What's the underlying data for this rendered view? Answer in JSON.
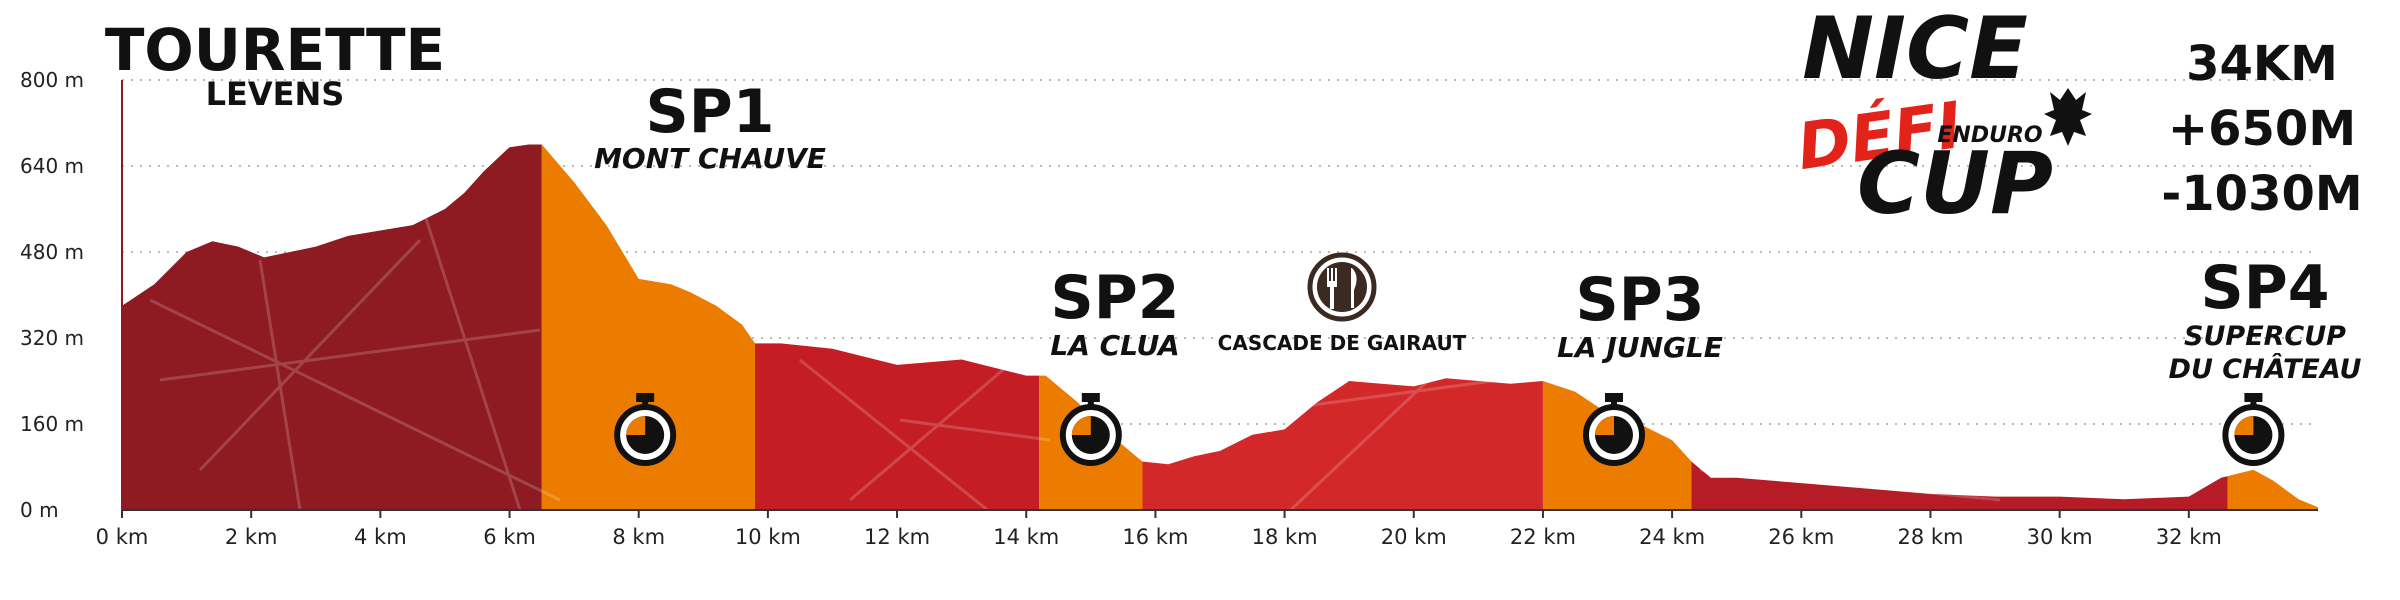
{
  "chart_data": {
    "type": "area",
    "x_unit": "km",
    "y_unit": "m",
    "xlim": [
      0,
      34
    ],
    "ylim": [
      0,
      800
    ],
    "yticks": [
      {
        "value": 0,
        "label": "0 m"
      },
      {
        "value": 160,
        "label": "160 m"
      },
      {
        "value": 320,
        "label": "320 m"
      },
      {
        "value": 480,
        "label": "480 m"
      },
      {
        "value": 640,
        "label": "640 m"
      },
      {
        "value": 800,
        "label": "800 m"
      }
    ],
    "xticks": [
      {
        "value": 0,
        "label": "0 km"
      },
      {
        "value": 2,
        "label": "2 km"
      },
      {
        "value": 4,
        "label": "4 km"
      },
      {
        "value": 6,
        "label": "6 km"
      },
      {
        "value": 8,
        "label": "8 km"
      },
      {
        "value": 10,
        "label": "10 km"
      },
      {
        "value": 12,
        "label": "12 km"
      },
      {
        "value": 14,
        "label": "14 km"
      },
      {
        "value": 16,
        "label": "16 km"
      },
      {
        "value": 18,
        "label": "18 km"
      },
      {
        "value": 20,
        "label": "20 km"
      },
      {
        "value": 22,
        "label": "22 km"
      },
      {
        "value": 24,
        "label": "24 km"
      },
      {
        "value": 26,
        "label": "26 km"
      },
      {
        "value": 28,
        "label": "28 km"
      },
      {
        "value": 30,
        "label": "30 km"
      },
      {
        "value": 32,
        "label": "32 km"
      }
    ],
    "grid": "horizontal-dotted",
    "series": [
      {
        "distance_km": [
          0,
          0.5,
          1.0,
          1.4,
          1.8,
          2.2,
          2.6,
          3.0,
          3.5,
          4.0,
          4.5,
          5.0,
          5.3,
          5.6,
          6.0,
          6.3,
          6.5,
          7.0,
          7.5,
          8.0,
          8.5,
          8.8,
          9.2,
          9.6,
          9.8,
          10.2,
          11.0,
          12.0,
          13.0,
          13.5,
          14.0,
          14.3,
          14.8,
          15.3,
          15.8,
          16.2,
          16.6,
          17.0,
          17.5,
          18.0,
          18.5,
          19.0,
          19.5,
          20.0,
          20.5,
          21.0,
          21.5,
          22.0,
          22.5,
          23.0,
          23.5,
          24.0,
          24.3,
          24.6,
          25.0,
          26.0,
          27.0,
          28.0,
          29.0,
          30.0,
          31.0,
          32.0,
          32.5,
          33.0,
          33.3,
          33.7,
          34.0
        ],
        "elevation_m": [
          380,
          420,
          480,
          500,
          490,
          470,
          480,
          490,
          510,
          520,
          530,
          560,
          590,
          630,
          675,
          680,
          680,
          610,
          530,
          430,
          420,
          405,
          380,
          345,
          310,
          310,
          300,
          270,
          280,
          265,
          250,
          250,
          200,
          140,
          90,
          85,
          100,
          110,
          140,
          150,
          200,
          240,
          235,
          230,
          245,
          240,
          235,
          240,
          220,
          180,
          160,
          130,
          90,
          60,
          60,
          50,
          40,
          30,
          25,
          25,
          20,
          25,
          60,
          75,
          55,
          20,
          5
        ]
      }
    ],
    "segments": [
      {
        "from": 0,
        "to": 6.5,
        "type": "liaison",
        "color": "#8e1a22"
      },
      {
        "from": 6.5,
        "to": 9.8,
        "type": "stage",
        "color": "#eb7c00"
      },
      {
        "from": 9.8,
        "to": 14.2,
        "type": "liaison",
        "color": "#c41e24"
      },
      {
        "from": 14.2,
        "to": 15.8,
        "type": "stage",
        "color": "#eb7c00"
      },
      {
        "from": 15.8,
        "to": 22.0,
        "type": "liaison",
        "color": "#d3282a"
      },
      {
        "from": 22.0,
        "to": 24.3,
        "type": "stage",
        "color": "#eb7c00"
      },
      {
        "from": 24.3,
        "to": 32.6,
        "type": "liaison",
        "color": "#b51c25"
      },
      {
        "from": 32.6,
        "to": 34.0,
        "type": "stage",
        "color": "#eb7c00"
      }
    ],
    "annotations": [
      {
        "id": "start",
        "title": "TOURETTE",
        "subtitle": "LEVENS"
      },
      {
        "id": "sp1",
        "title": "SP1",
        "subtitle": "MONT CHAUVE",
        "timer_km": 8.1
      },
      {
        "id": "sp2",
        "title": "SP2",
        "subtitle": "LA CLUA",
        "timer_km": 15.0
      },
      {
        "id": "food",
        "title": "CASCADE DE GAIRAUT",
        "icon": "fork-knife-icon",
        "km": 19.2
      },
      {
        "id": "sp3",
        "title": "SP3",
        "subtitle": "LA JUNGLE",
        "timer_km": 23.1
      },
      {
        "id": "sp4",
        "title": "SP4",
        "subtitle_line1": "SUPERCUP",
        "subtitle_line2": "DU CHÂTEAU",
        "timer_km": 33.0
      }
    ]
  },
  "logo": {
    "line1": "NICE",
    "line2": "DÉFI",
    "line3": "ENDURO",
    "line4": "CUP",
    "accent": "#e2231a"
  },
  "stats": {
    "distance": "34KM",
    "ascent": "+650M",
    "descent": "-1030M"
  }
}
